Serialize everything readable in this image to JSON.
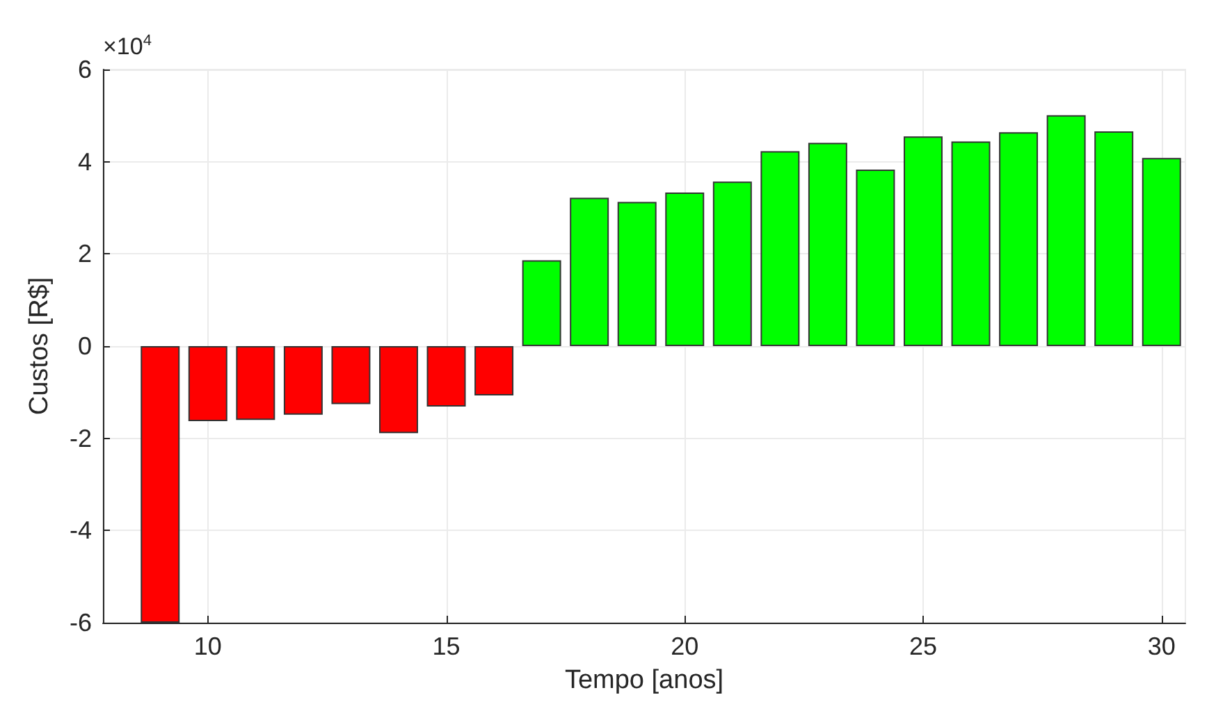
{
  "chart_data": {
    "type": "bar",
    "xlabel": "Tempo [anos]",
    "ylabel": "Custos [R$]",
    "annotations": [
      "×10$^{4}$"
    ],
    "x": [
      9,
      10,
      11,
      12,
      13,
      14,
      15,
      16,
      17,
      18,
      19,
      20,
      21,
      22,
      23,
      24,
      25,
      26,
      27,
      28,
      29,
      30
    ],
    "values": [
      -6,
      -1.63,
      -1.6,
      -1.49,
      -1.26,
      -1.89,
      -1.31,
      -1.07,
      1.86,
      3.22,
      3.13,
      3.33,
      3.57,
      4.23,
      4.41,
      3.83,
      4.55,
      4.44,
      4.64,
      5.01,
      4.66,
      4.08
    ],
    "colors": [
      "#ff0000",
      "#ff0000",
      "#ff0000",
      "#ff0000",
      "#ff0000",
      "#ff0000",
      "#ff0000",
      "#ff0000",
      "#00ff00",
      "#00ff00",
      "#00ff00",
      "#00ff00",
      "#00ff00",
      "#00ff00",
      "#00ff00",
      "#00ff00",
      "#00ff00",
      "#00ff00",
      "#00ff00",
      "#00ff00",
      "#00ff00",
      "#00ff00"
    ],
    "xlim": [
      7.8,
      30.5
    ],
    "xticks": [
      10,
      15,
      20,
      25,
      30
    ],
    "ylim": [
      -6,
      6
    ],
    "yticks": [
      -6,
      -4,
      -2,
      0,
      2,
      4,
      6
    ],
    "grid": true
  }
}
